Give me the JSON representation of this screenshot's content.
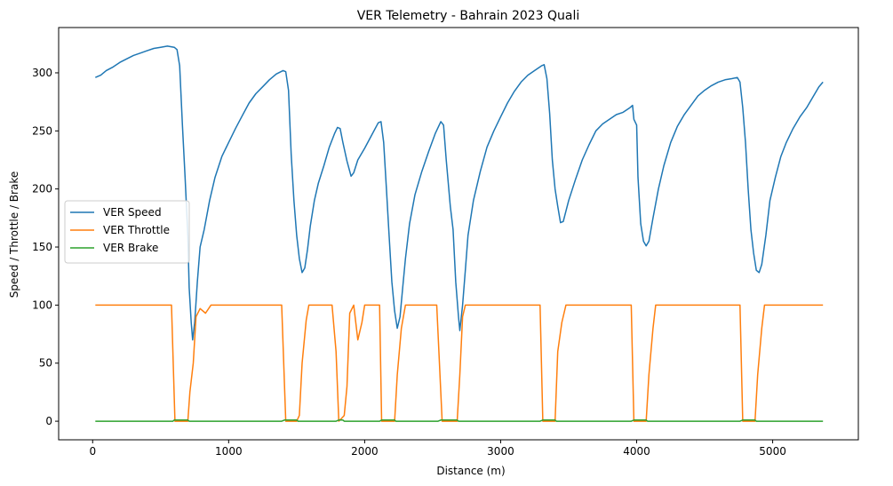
{
  "chart_data": {
    "type": "line",
    "title": "VER Telemetry - Bahrain 2023 Quali",
    "xlabel": "Distance (m)",
    "ylabel": "Speed / Throttle / Brake",
    "xlim": [
      -250,
      5630
    ],
    "ylim": [
      -16,
      339
    ],
    "xticks": [
      0,
      1000,
      2000,
      3000,
      4000,
      5000
    ],
    "yticks": [
      0,
      50,
      100,
      150,
      200,
      250,
      300
    ],
    "grid": false,
    "legend_position": "center-left",
    "series": [
      {
        "name": "VER Speed",
        "color": "#1f77b4",
        "points": [
          [
            20,
            296
          ],
          [
            60,
            298
          ],
          [
            100,
            302
          ],
          [
            150,
            305
          ],
          [
            200,
            309
          ],
          [
            250,
            312
          ],
          [
            300,
            315
          ],
          [
            350,
            317
          ],
          [
            400,
            319
          ],
          [
            450,
            321
          ],
          [
            500,
            322
          ],
          [
            550,
            323
          ],
          [
            600,
            322
          ],
          [
            620,
            320
          ],
          [
            640,
            306
          ],
          [
            660,
            255
          ],
          [
            680,
            210
          ],
          [
            700,
            160
          ],
          [
            710,
            115
          ],
          [
            725,
            85
          ],
          [
            735,
            70
          ],
          [
            750,
            85
          ],
          [
            770,
            120
          ],
          [
            790,
            150
          ],
          [
            820,
            165
          ],
          [
            860,
            190
          ],
          [
            900,
            210
          ],
          [
            950,
            228
          ],
          [
            1000,
            240
          ],
          [
            1050,
            252
          ],
          [
            1100,
            263
          ],
          [
            1150,
            274
          ],
          [
            1200,
            282
          ],
          [
            1250,
            288
          ],
          [
            1300,
            294
          ],
          [
            1350,
            299
          ],
          [
            1400,
            302
          ],
          [
            1420,
            301
          ],
          [
            1440,
            285
          ],
          [
            1460,
            230
          ],
          [
            1480,
            190
          ],
          [
            1500,
            160
          ],
          [
            1520,
            140
          ],
          [
            1540,
            128
          ],
          [
            1560,
            132
          ],
          [
            1580,
            148
          ],
          [
            1600,
            168
          ],
          [
            1630,
            190
          ],
          [
            1660,
            205
          ],
          [
            1700,
            220
          ],
          [
            1740,
            236
          ],
          [
            1780,
            248
          ],
          [
            1800,
            253
          ],
          [
            1820,
            252
          ],
          [
            1840,
            240
          ],
          [
            1870,
            224
          ],
          [
            1900,
            211
          ],
          [
            1920,
            214
          ],
          [
            1950,
            225
          ],
          [
            2000,
            235
          ],
          [
            2050,
            246
          ],
          [
            2100,
            257
          ],
          [
            2120,
            258
          ],
          [
            2140,
            240
          ],
          [
            2160,
            200
          ],
          [
            2180,
            160
          ],
          [
            2200,
            120
          ],
          [
            2220,
            95
          ],
          [
            2240,
            80
          ],
          [
            2260,
            90
          ],
          [
            2280,
            115
          ],
          [
            2300,
            140
          ],
          [
            2330,
            170
          ],
          [
            2370,
            195
          ],
          [
            2420,
            215
          ],
          [
            2470,
            232
          ],
          [
            2520,
            248
          ],
          [
            2560,
            258
          ],
          [
            2580,
            255
          ],
          [
            2600,
            225
          ],
          [
            2630,
            185
          ],
          [
            2650,
            165
          ],
          [
            2670,
            120
          ],
          [
            2690,
            90
          ],
          [
            2700,
            78
          ],
          [
            2720,
            100
          ],
          [
            2740,
            130
          ],
          [
            2760,
            160
          ],
          [
            2800,
            190
          ],
          [
            2850,
            215
          ],
          [
            2900,
            236
          ],
          [
            2950,
            250
          ],
          [
            3000,
            262
          ],
          [
            3050,
            274
          ],
          [
            3100,
            284
          ],
          [
            3150,
            292
          ],
          [
            3200,
            298
          ],
          [
            3250,
            302
          ],
          [
            3300,
            306
          ],
          [
            3320,
            307
          ],
          [
            3340,
            295
          ],
          [
            3360,
            265
          ],
          [
            3380,
            225
          ],
          [
            3400,
            200
          ],
          [
            3420,
            185
          ],
          [
            3440,
            171
          ],
          [
            3460,
            172
          ],
          [
            3500,
            190
          ],
          [
            3550,
            208
          ],
          [
            3600,
            225
          ],
          [
            3650,
            238
          ],
          [
            3700,
            250
          ],
          [
            3750,
            256
          ],
          [
            3800,
            260
          ],
          [
            3850,
            264
          ],
          [
            3900,
            266
          ],
          [
            3950,
            270
          ],
          [
            3970,
            272
          ],
          [
            3980,
            260
          ],
          [
            4000,
            255
          ],
          [
            4010,
            210
          ],
          [
            4030,
            170
          ],
          [
            4050,
            155
          ],
          [
            4070,
            151
          ],
          [
            4090,
            155
          ],
          [
            4120,
            175
          ],
          [
            4160,
            200
          ],
          [
            4200,
            220
          ],
          [
            4250,
            240
          ],
          [
            4300,
            254
          ],
          [
            4350,
            264
          ],
          [
            4400,
            272
          ],
          [
            4450,
            280
          ],
          [
            4500,
            285
          ],
          [
            4550,
            289
          ],
          [
            4600,
            292
          ],
          [
            4650,
            294
          ],
          [
            4700,
            295
          ],
          [
            4740,
            296
          ],
          [
            4760,
            292
          ],
          [
            4780,
            270
          ],
          [
            4800,
            240
          ],
          [
            4820,
            200
          ],
          [
            4840,
            165
          ],
          [
            4860,
            145
          ],
          [
            4880,
            130
          ],
          [
            4900,
            128
          ],
          [
            4920,
            135
          ],
          [
            4950,
            160
          ],
          [
            4980,
            190
          ],
          [
            5020,
            210
          ],
          [
            5060,
            228
          ],
          [
            5100,
            240
          ],
          [
            5150,
            252
          ],
          [
            5200,
            262
          ],
          [
            5250,
            270
          ],
          [
            5300,
            280
          ],
          [
            5340,
            288
          ],
          [
            5370,
            292
          ]
        ]
      },
      {
        "name": "VER Throttle",
        "color": "#ff7f0e",
        "points": [
          [
            20,
            100
          ],
          [
            580,
            100
          ],
          [
            605,
            0
          ],
          [
            700,
            0
          ],
          [
            715,
            25
          ],
          [
            740,
            50
          ],
          [
            760,
            90
          ],
          [
            790,
            97
          ],
          [
            830,
            93
          ],
          [
            870,
            100
          ],
          [
            1390,
            100
          ],
          [
            1420,
            0
          ],
          [
            1500,
            0
          ],
          [
            1520,
            5
          ],
          [
            1540,
            50
          ],
          [
            1570,
            87
          ],
          [
            1590,
            100
          ],
          [
            1760,
            100
          ],
          [
            1790,
            60
          ],
          [
            1810,
            0
          ],
          [
            1850,
            5
          ],
          [
            1870,
            30
          ],
          [
            1890,
            93
          ],
          [
            1920,
            100
          ],
          [
            1950,
            70
          ],
          [
            1980,
            85
          ],
          [
            2000,
            100
          ],
          [
            2110,
            100
          ],
          [
            2125,
            0
          ],
          [
            2220,
            0
          ],
          [
            2240,
            40
          ],
          [
            2270,
            80
          ],
          [
            2300,
            100
          ],
          [
            2530,
            100
          ],
          [
            2570,
            0
          ],
          [
            2680,
            0
          ],
          [
            2700,
            40
          ],
          [
            2720,
            90
          ],
          [
            2740,
            100
          ],
          [
            3290,
            100
          ],
          [
            3310,
            0
          ],
          [
            3400,
            0
          ],
          [
            3420,
            60
          ],
          [
            3450,
            85
          ],
          [
            3480,
            100
          ],
          [
            3960,
            100
          ],
          [
            3980,
            0
          ],
          [
            4070,
            0
          ],
          [
            4090,
            40
          ],
          [
            4120,
            80
          ],
          [
            4140,
            100
          ],
          [
            4760,
            100
          ],
          [
            4780,
            0
          ],
          [
            4870,
            0
          ],
          [
            4890,
            40
          ],
          [
            4920,
            80
          ],
          [
            4940,
            100
          ],
          [
            5370,
            100
          ]
        ]
      },
      {
        "name": "VER Brake",
        "color": "#2ca02c",
        "points": [
          [
            20,
            0
          ],
          [
            590,
            0
          ],
          [
            600,
            1
          ],
          [
            700,
            1
          ],
          [
            710,
            0
          ],
          [
            1390,
            0
          ],
          [
            1410,
            1
          ],
          [
            1500,
            1
          ],
          [
            1510,
            0
          ],
          [
            1790,
            0
          ],
          [
            1810,
            1
          ],
          [
            1840,
            1
          ],
          [
            1850,
            0
          ],
          [
            2110,
            0
          ],
          [
            2125,
            1
          ],
          [
            2220,
            1
          ],
          [
            2230,
            0
          ],
          [
            2540,
            0
          ],
          [
            2560,
            1
          ],
          [
            2680,
            1
          ],
          [
            2690,
            0
          ],
          [
            3290,
            0
          ],
          [
            3310,
            1
          ],
          [
            3400,
            1
          ],
          [
            3410,
            0
          ],
          [
            3960,
            0
          ],
          [
            3980,
            1
          ],
          [
            4070,
            1
          ],
          [
            4080,
            0
          ],
          [
            4760,
            0
          ],
          [
            4780,
            1
          ],
          [
            4870,
            1
          ],
          [
            4880,
            0
          ],
          [
            5370,
            0
          ]
        ]
      }
    ]
  }
}
